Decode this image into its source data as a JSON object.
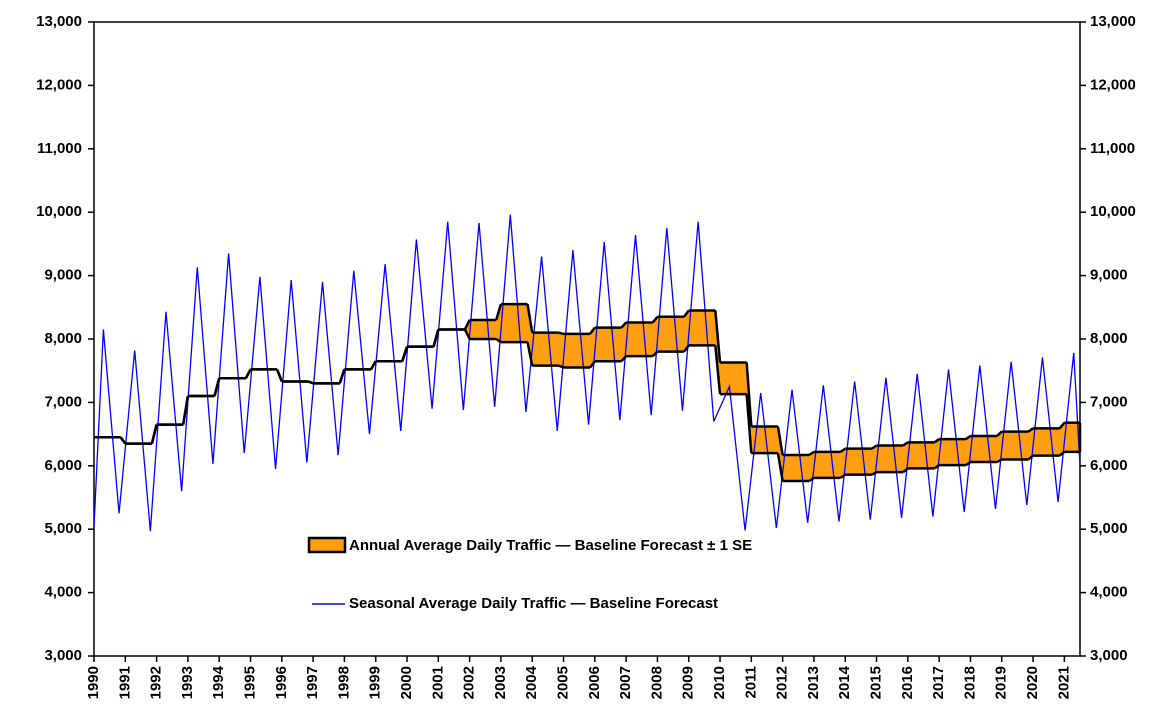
{
  "chart_data": {
    "type": "line",
    "xlim": [
      1990,
      2021.5
    ],
    "xticks": [
      1990,
      1991,
      1992,
      1993,
      1994,
      1995,
      1996,
      1997,
      1998,
      1999,
      2000,
      2001,
      2002,
      2003,
      2004,
      2005,
      2006,
      2007,
      2008,
      2009,
      2010,
      2011,
      2012,
      2013,
      2014,
      2015,
      2016,
      2017,
      2018,
      2019,
      2020,
      2021
    ],
    "ylim": [
      3000,
      13000
    ],
    "yticks": [
      {
        "value": 3000,
        "label": "3,000"
      },
      {
        "value": 4000,
        "label": "4,000"
      },
      {
        "value": 5000,
        "label": "5,000"
      },
      {
        "value": 6000,
        "label": "6,000"
      },
      {
        "value": 7000,
        "label": "7,000"
      },
      {
        "value": 8000,
        "label": "8,000"
      },
      {
        "value": 9000,
        "label": "9,000"
      },
      {
        "value": 10000,
        "label": "10,000"
      },
      {
        "value": 11000,
        "label": "11,000"
      },
      {
        "value": 12000,
        "label": "12,000"
      },
      {
        "value": 13000,
        "label": "13,000"
      }
    ],
    "y2lim": [
      3000,
      13000
    ],
    "y2ticks": [
      {
        "value": 3000,
        "label": "3,000"
      },
      {
        "value": 4000,
        "label": "4,000"
      },
      {
        "value": 5000,
        "label": "5,000"
      },
      {
        "value": 6000,
        "label": "6,000"
      },
      {
        "value": 7000,
        "label": "7,000"
      },
      {
        "value": 8000,
        "label": "8,000"
      },
      {
        "value": 9000,
        "label": "9,000"
      },
      {
        "value": 10000,
        "label": "10,000"
      },
      {
        "value": 11000,
        "label": "11,000"
      },
      {
        "value": 12000,
        "label": "12,000"
      },
      {
        "value": 13000,
        "label": "13,000"
      }
    ],
    "band": {
      "name": "Annual Average Daily Traffic — Baseline Forecast ± 1 SE",
      "color": "#ff9e0e",
      "x": [
        1990,
        1991,
        1992,
        1993,
        1994,
        1995,
        1996,
        1997,
        1998,
        1999,
        2000,
        2001,
        2002,
        2003,
        2004,
        2005,
        2006,
        2007,
        2008,
        2009,
        2010,
        2011,
        2012,
        2013,
        2014,
        2015,
        2016,
        2017,
        2018,
        2019,
        2020,
        2021
      ],
      "lower": [
        6450,
        6350,
        6650,
        7100,
        7380,
        7520,
        7330,
        7300,
        7520,
        7650,
        7880,
        8150,
        8000,
        7950,
        7580,
        7550,
        7650,
        7730,
        7800,
        7900,
        7130,
        6200,
        5760,
        5810,
        5860,
        5900,
        5960,
        6010,
        6060,
        6100,
        6160,
        6220
      ],
      "upper": [
        6450,
        6350,
        6650,
        7100,
        7380,
        7520,
        7330,
        7300,
        7520,
        7650,
        7880,
        8150,
        8300,
        8550,
        8100,
        8080,
        8180,
        8260,
        8350,
        8450,
        7630,
        6620,
        6170,
        6220,
        6270,
        6320,
        6370,
        6420,
        6470,
        6540,
        6590,
        6680
      ]
    },
    "series": [
      {
        "name": "Seasonal Average Daily Traffic — Baseline Forecast",
        "color": "#0000ff",
        "x": [
          1990,
          1990.3,
          1990.8,
          1991.3,
          1991.8,
          1992.3,
          1992.8,
          1993.3,
          1993.8,
          1994.3,
          1994.8,
          1995.3,
          1995.8,
          1996.3,
          1996.8,
          1997.3,
          1997.8,
          1998.3,
          1998.8,
          1999.3,
          1999.8,
          2000.3,
          2000.8,
          2001.3,
          2001.8,
          2002.3,
          2002.8,
          2003.3,
          2003.8,
          2004.3,
          2004.8,
          2005.3,
          2005.8,
          2006.3,
          2006.8,
          2007.3,
          2007.8,
          2008.3,
          2008.8,
          2009.3,
          2009.8,
          2010.3,
          2010.8,
          2011.3,
          2011.8,
          2012.3,
          2012.8,
          2013.3,
          2013.8,
          2014.3,
          2014.8,
          2015.3,
          2015.8,
          2016.3,
          2016.8,
          2017.3,
          2017.8,
          2018.3,
          2018.8,
          2019.3,
          2019.8,
          2020.3,
          2020.8,
          2021.3,
          2021.5
        ],
        "values": [
          5050,
          8150,
          5250,
          7820,
          4970,
          8430,
          5600,
          9130,
          6030,
          9350,
          6200,
          8980,
          5950,
          8930,
          6050,
          8900,
          6170,
          9080,
          6500,
          9180,
          6550,
          9570,
          6900,
          9850,
          6880,
          9830,
          6930,
          9960,
          6850,
          9300,
          6550,
          9400,
          6650,
          9530,
          6720,
          9640,
          6800,
          9750,
          6870,
          9850,
          6700,
          7250,
          4980,
          7150,
          5020,
          7200,
          5100,
          7270,
          5120,
          7330,
          5150,
          7390,
          5180,
          7450,
          5200,
          7520,
          5270,
          7580,
          5320,
          7640,
          5380,
          7710,
          5430,
          7780,
          6000
        ]
      }
    ]
  }
}
